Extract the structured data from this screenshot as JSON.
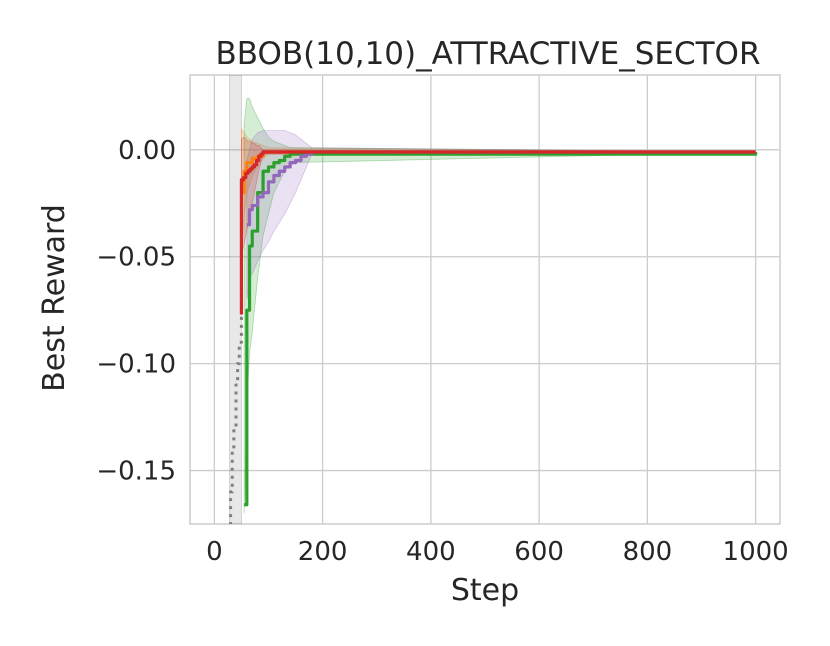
{
  "chart_data": {
    "type": "line",
    "title": "BBOB(10,10)_ATTRACTIVE_SECTOR",
    "xlabel": "Step",
    "ylabel": "Best Reward",
    "xlim": [
      -45,
      1045
    ],
    "ylim": [
      -0.175,
      0.035
    ],
    "xticks": [
      0,
      200,
      400,
      600,
      800,
      1000
    ],
    "xtick_labels": [
      "0",
      "200",
      "400",
      "600",
      "800",
      "1000"
    ],
    "yticks": [
      0.0,
      -0.05,
      -0.1,
      -0.15
    ],
    "ytick_labels": [
      "0.00",
      "−0.05",
      "−0.10",
      "−0.15"
    ],
    "grid": true,
    "series": [
      {
        "color": "#7f7f7f",
        "dash": true,
        "x": [
          28,
          30,
          33,
          36,
          40,
          43,
          46,
          50
        ],
        "y": [
          -0.175,
          -0.16,
          -0.14,
          -0.13,
          -0.11,
          -0.1,
          -0.09,
          -0.077
        ],
        "band_lower": [
          -0.175,
          -0.175,
          -0.175,
          -0.175,
          -0.175,
          -0.175,
          -0.175,
          -0.175
        ],
        "band_upper": [
          0.035,
          0.035,
          0.035,
          0.035,
          0.035,
          0.035,
          0.035,
          0.035
        ]
      },
      {
        "color": "#ff7f0e",
        "dash": false,
        "x": [
          50,
          55,
          60,
          70,
          80,
          90,
          100,
          1000
        ],
        "y": [
          -0.02,
          -0.01,
          -0.006,
          -0.004,
          -0.003,
          -0.001,
          -0.001,
          -0.001
        ],
        "band_lower": [
          -0.05,
          -0.03,
          -0.02,
          -0.012,
          -0.008,
          -0.004,
          -0.002,
          -0.001
        ],
        "band_upper": [
          0.01,
          0.008,
          0.006,
          0.004,
          0.003,
          0.002,
          0.001,
          -0.001
        ]
      },
      {
        "color": "#2ca02c",
        "dash": false,
        "x": [
          55,
          60,
          65,
          70,
          80,
          90,
          100,
          110,
          120,
          130,
          140,
          1000
        ],
        "y": [
          -0.166,
          -0.075,
          -0.045,
          -0.038,
          -0.02,
          -0.01,
          -0.008,
          -0.006,
          -0.005,
          -0.003,
          -0.002,
          -0.001
        ],
        "band_lower": [
          -0.17,
          -0.12,
          -0.095,
          -0.085,
          -0.06,
          -0.04,
          -0.03,
          -0.02,
          -0.015,
          -0.01,
          -0.006,
          -0.001
        ],
        "band_upper": [
          0.012,
          0.024,
          0.024,
          0.02,
          0.015,
          0.01,
          0.006,
          0.004,
          0.003,
          0.002,
          0.001,
          -0.001
        ]
      },
      {
        "color": "#9467bd",
        "dash": false,
        "x": [
          60,
          65,
          70,
          80,
          90,
          100,
          110,
          120,
          130,
          140,
          150,
          160,
          170,
          180,
          1000
        ],
        "y": [
          -0.035,
          -0.028,
          -0.026,
          -0.022,
          -0.02,
          -0.015,
          -0.012,
          -0.01,
          -0.008,
          -0.006,
          -0.005,
          -0.003,
          -0.002,
          -0.001,
          -0.001
        ],
        "band_lower": [
          -0.07,
          -0.06,
          -0.058,
          -0.052,
          -0.047,
          -0.043,
          -0.038,
          -0.034,
          -0.03,
          -0.025,
          -0.02,
          -0.014,
          -0.008,
          -0.002,
          -0.001
        ],
        "band_upper": [
          -0.005,
          0.0,
          0.005,
          0.008,
          0.009,
          0.009,
          0.009,
          0.009,
          0.009,
          0.008,
          0.007,
          0.005,
          0.003,
          0.001,
          -0.001
        ]
      },
      {
        "color": "#d62728",
        "dash": false,
        "x": [
          50,
          50,
          54,
          58,
          62,
          66,
          70,
          74,
          78,
          82,
          86,
          90,
          1000
        ],
        "y": [
          -0.077,
          -0.014,
          -0.013,
          -0.011,
          -0.01,
          -0.009,
          -0.008,
          -0.007,
          -0.005,
          -0.003,
          -0.002,
          -0.001,
          -0.001
        ],
        "band_lower": [
          -0.077,
          -0.05,
          -0.045,
          -0.04,
          -0.035,
          -0.03,
          -0.025,
          -0.02,
          -0.015,
          -0.01,
          -0.006,
          -0.002,
          -0.001
        ],
        "band_upper": [
          -0.077,
          0.005,
          0.006,
          0.005,
          0.004,
          0.004,
          0.003,
          0.003,
          0.002,
          0.002,
          0.001,
          0.0,
          -0.001
        ]
      }
    ]
  }
}
